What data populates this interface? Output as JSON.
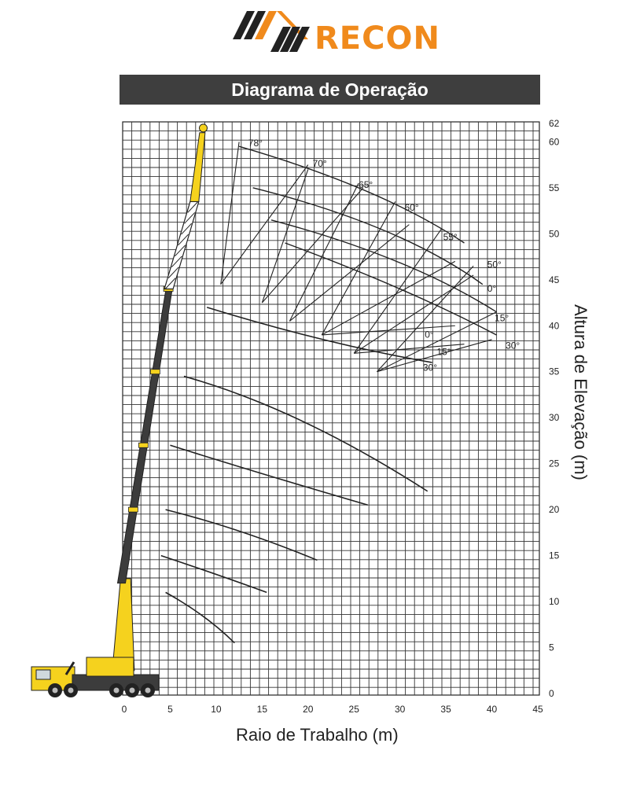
{
  "logo": {
    "text": "RECON",
    "brand_color": "#f08a1c",
    "stripe_color": "#222222"
  },
  "title": "Diagrama de Operação",
  "chart_data": {
    "type": "line",
    "xlabel": "Raio de Trabalho (m)",
    "ylabel": "Altura de Elevação (m)",
    "xlim": [
      0,
      45
    ],
    "ylim": [
      0,
      62
    ],
    "x_ticks": [
      0,
      5,
      10,
      15,
      20,
      25,
      30,
      35,
      40,
      45
    ],
    "y_ticks": [
      0,
      5,
      10,
      15,
      20,
      25,
      30,
      35,
      40,
      45,
      50,
      55,
      60,
      62
    ],
    "grid": true,
    "angle_labels": [
      "78°",
      "70°",
      "65°",
      "60°",
      "55°",
      "50°",
      "0°",
      "15°",
      "30°",
      "0°",
      "15°",
      "30°"
    ]
  },
  "colors": {
    "boom_yellow": "#f5d21e",
    "boom_dark": "#3c3c3c",
    "grid": "#222222",
    "title_bg": "#3e3e3e"
  }
}
